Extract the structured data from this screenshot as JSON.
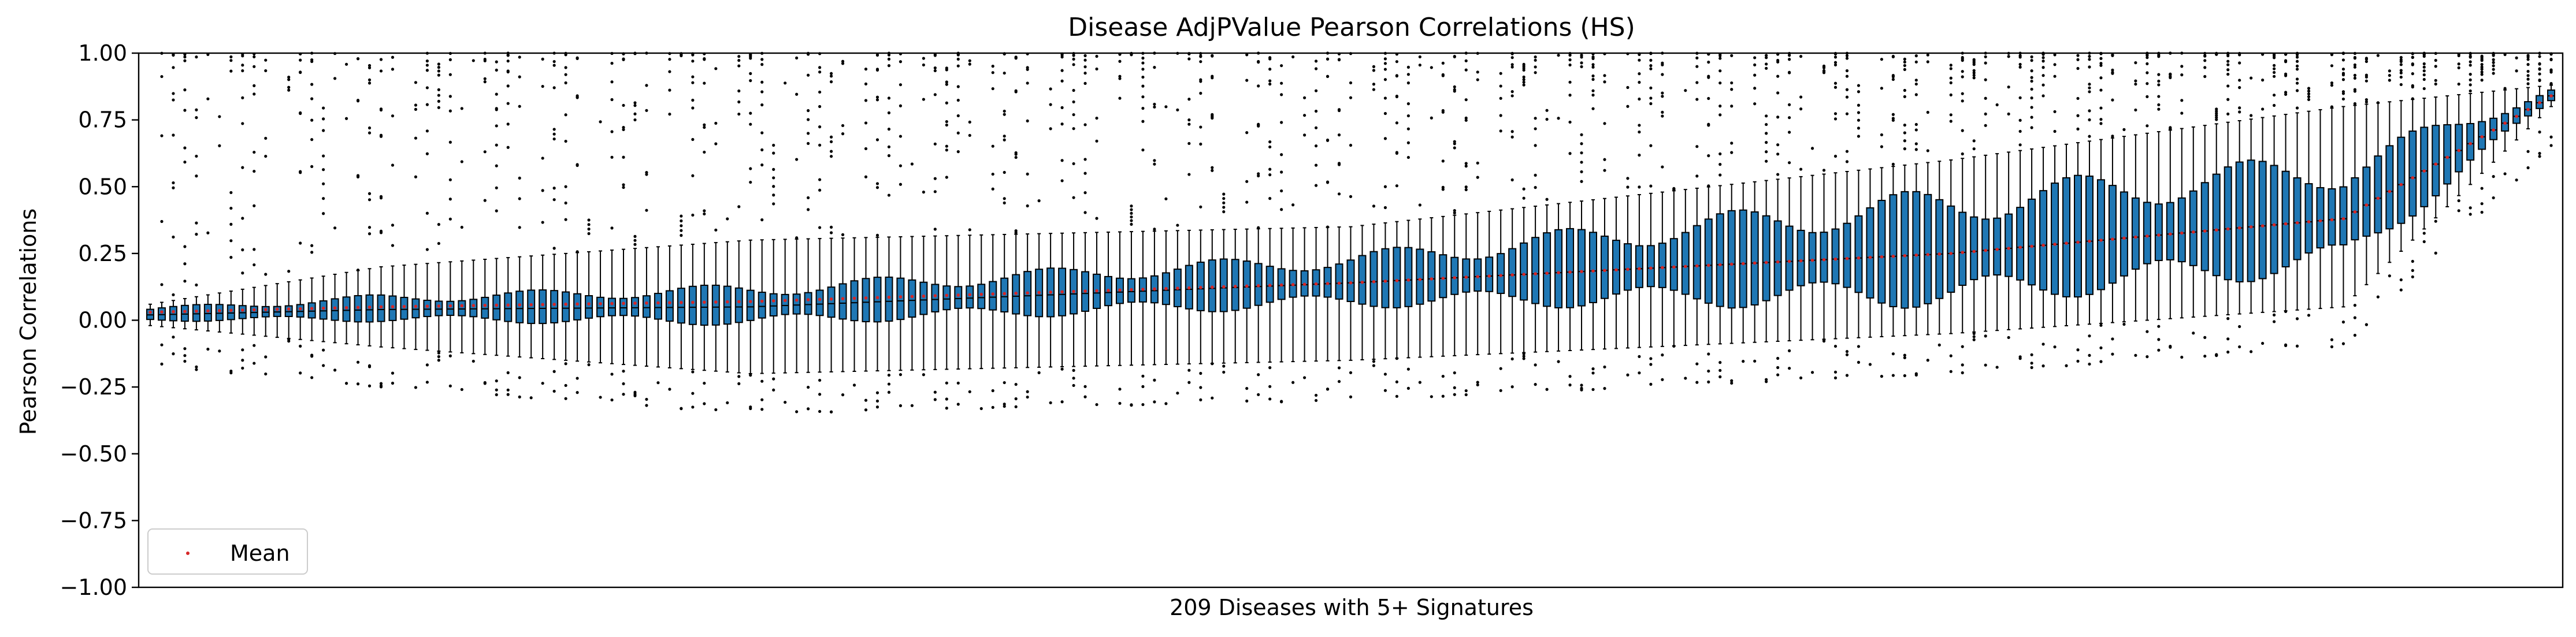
{
  "chart_data": {
    "type": "box",
    "title": "Disease AdjPValue Pearson Correlations (HS)",
    "xlabel": "209 Diseases with 5+ Signatures",
    "ylabel": "Pearson Correlations",
    "ylim": [
      -1.0,
      1.0
    ],
    "yticks": [
      -1.0,
      -0.75,
      -0.5,
      -0.25,
      0.0,
      0.25,
      0.5,
      0.75,
      1.0
    ],
    "ytick_labels": [
      "−1.00",
      "−0.75",
      "−0.50",
      "−0.25",
      "0.00",
      "0.25",
      "0.50",
      "0.75",
      "1.00"
    ],
    "n_boxes": 209,
    "box_color": "#1f77b4",
    "mean_color": "#d62728",
    "grid": false,
    "legend": {
      "position": "lower-left",
      "entries": [
        {
          "label": "Mean",
          "color": "#d62728"
        }
      ]
    },
    "key_boxes": [
      {
        "index": 0,
        "q1": 0.0,
        "median": 0.02,
        "q3": 0.04,
        "whisker_low": -0.02,
        "whisker_high": 0.06,
        "mean": 0.03
      },
      {
        "index": 20,
        "q1": 0.0,
        "median": 0.04,
        "q3": 0.08,
        "whisker_low": -0.1,
        "whisker_high": 0.2,
        "mean": 0.05
      },
      {
        "index": 52,
        "q1": 0.0,
        "median": 0.05,
        "q3": 0.12,
        "whisker_low": -0.2,
        "whisker_high": 0.3,
        "mean": 0.07
      },
      {
        "index": 104,
        "q1": 0.04,
        "median": 0.14,
        "q3": 0.2,
        "whisker_low": -0.15,
        "whisker_high": 0.35,
        "mean": 0.14
      },
      {
        "index": 156,
        "q1": 0.1,
        "median": 0.25,
        "q3": 0.45,
        "whisker_low": -0.05,
        "whisker_high": 0.6,
        "mean": 0.25
      },
      {
        "index": 190,
        "q1": 0.2,
        "median": 0.38,
        "q3": 0.55,
        "whisker_low": 0.05,
        "whisker_high": 0.8,
        "mean": 0.38
      },
      {
        "index": 208,
        "q1": 0.82,
        "median": 0.84,
        "q3": 0.86,
        "whisker_low": 0.8,
        "whisker_high": 0.88,
        "mean": 0.84
      }
    ]
  }
}
